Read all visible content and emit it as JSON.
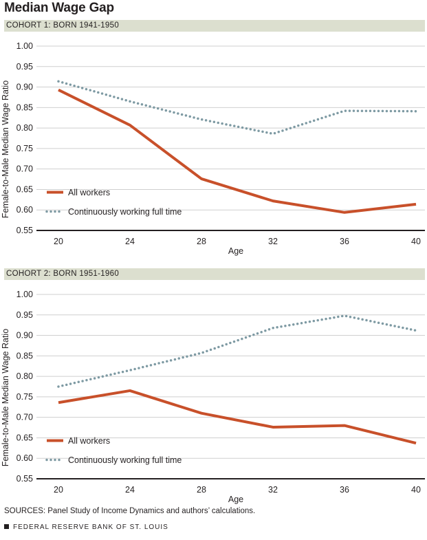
{
  "title": "Median Wage Gap",
  "colors": {
    "all_workers": "#c8502a",
    "full_time": "#7e9aa3",
    "band": "#dcdfcf",
    "axis": "#231f20"
  },
  "chart_data": [
    {
      "type": "line",
      "subtitle": "COHORT 1: BORN 1941-1950",
      "xlabel": "Age",
      "ylabel": "Female-to-Male Median Wage Ratio",
      "x": [
        20,
        24,
        28,
        32,
        36,
        40
      ],
      "x_ticks": [
        "20",
        "24",
        "28",
        "32",
        "36",
        "40"
      ],
      "y_ticks": [
        "1.00",
        "0.95",
        "0.90",
        "0.85",
        "0.80",
        "0.75",
        "0.70",
        "0.65",
        "0.60",
        "0.55"
      ],
      "ylim": [
        0.55,
        1.0
      ],
      "grid": true,
      "legend_position": "bottom-left",
      "series": [
        {
          "name": "All workers",
          "style": "solid",
          "values": [
            0.893,
            0.807,
            0.676,
            0.622,
            0.594,
            0.614
          ]
        },
        {
          "name": "Continuously working full time",
          "style": "dotted",
          "values": [
            0.914,
            0.865,
            0.821,
            0.786,
            0.842,
            0.841
          ]
        }
      ]
    },
    {
      "type": "line",
      "subtitle": "COHORT 2: BORN 1951-1960",
      "xlabel": "Age",
      "ylabel": "Female-to-Male Median Wage Ratio",
      "x": [
        20,
        24,
        28,
        32,
        36,
        40
      ],
      "x_ticks": [
        "20",
        "24",
        "28",
        "32",
        "36",
        "40"
      ],
      "y_ticks": [
        "1.00",
        "0.95",
        "0.90",
        "0.85",
        "0.80",
        "0.75",
        "0.70",
        "0.65",
        "0.60",
        "0.55"
      ],
      "ylim": [
        0.55,
        1.0
      ],
      "grid": true,
      "legend_position": "bottom-left",
      "series": [
        {
          "name": "All workers",
          "style": "solid",
          "values": [
            0.736,
            0.765,
            0.71,
            0.676,
            0.68,
            0.637
          ]
        },
        {
          "name": "Continuously working full time",
          "style": "dotted",
          "values": [
            0.775,
            0.815,
            0.857,
            0.918,
            0.948,
            0.912
          ]
        }
      ]
    }
  ],
  "sources": "SOURCES: Panel Study of Income Dynamics and authors’ calculations.",
  "footer": "FEDERAL RESERVE BANK OF ST. LOUIS"
}
